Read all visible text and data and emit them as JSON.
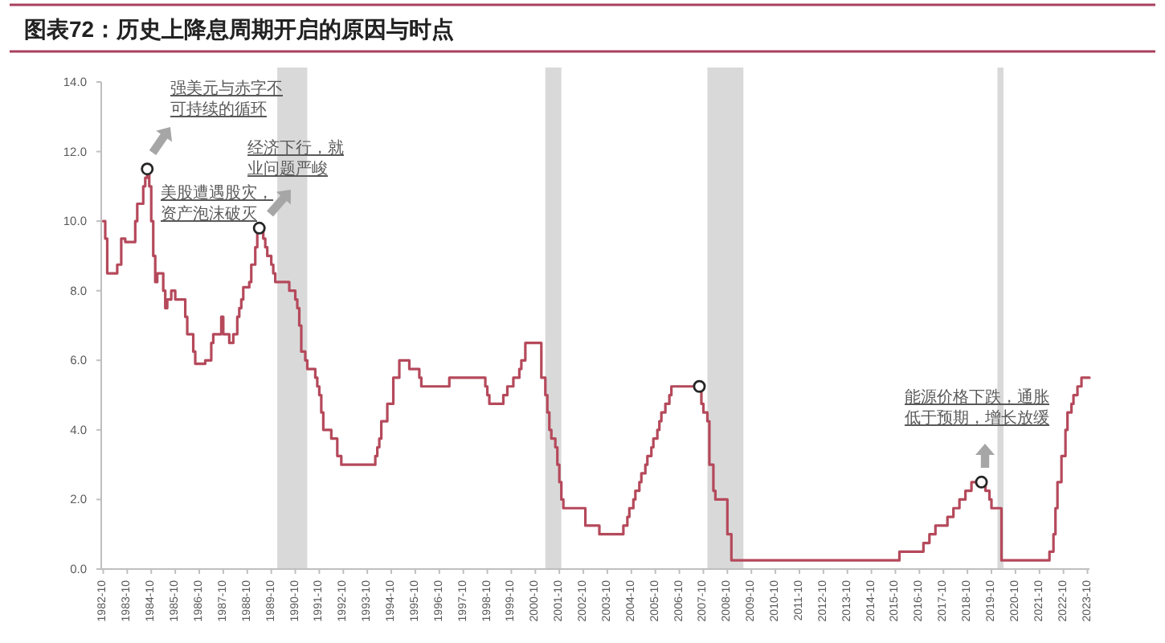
{
  "chart_data": {
    "type": "step",
    "title": "图表72：历史上降息周期开启的原因与时点",
    "xlim": [
      "1982-09",
      "2023-11"
    ],
    "xticks": [
      "1982-10",
      "1983-10",
      "1984-10",
      "1985-10",
      "1986-10",
      "1987-10",
      "1988-10",
      "1989-10",
      "1990-10",
      "1991-10",
      "1992-10",
      "1993-10",
      "1994-10",
      "1995-10",
      "1996-10",
      "1997-10",
      "1998-10",
      "1999-10",
      "2000-10",
      "2001-10",
      "2002-10",
      "2003-10",
      "2004-10",
      "2005-10",
      "2006-10",
      "2007-10",
      "2008-10",
      "2009-10",
      "2010-10",
      "2011-10",
      "2012-10",
      "2013-10",
      "2014-10",
      "2015-10",
      "2016-10",
      "2017-10",
      "2018-10",
      "2019-10",
      "2020-10",
      "2021-10",
      "2022-10",
      "2023-10"
    ],
    "ylim": [
      0,
      14
    ],
    "yticks": [
      {
        "value": 0,
        "label": "0.0"
      },
      {
        "value": 2,
        "label": "2.0"
      },
      {
        "value": 4,
        "label": "4.0"
      },
      {
        "value": 6,
        "label": "6.0"
      },
      {
        "value": 8,
        "label": "8.0"
      },
      {
        "value": 10,
        "label": "10.0"
      },
      {
        "value": 12,
        "label": "12.0"
      },
      {
        "value": 14,
        "label": "14.0"
      }
    ],
    "bands": [
      {
        "axis": "x",
        "from": "1990-01",
        "to": "1991-04",
        "color": "#d9d9d9"
      },
      {
        "axis": "x",
        "from": "2001-03",
        "to": "2001-11",
        "color": "#d9d9d9"
      },
      {
        "axis": "x",
        "from": "2007-12",
        "to": "2009-06",
        "color": "#d9d9d9"
      },
      {
        "axis": "x",
        "from": "2020-01",
        "to": "2020-04",
        "color": "#d9d9d9"
      }
    ],
    "series": [
      {
        "color": "#b5495b",
        "x": [
          "1982-10",
          "1982-11",
          "1982-12",
          "1983-05",
          "1983-07",
          "1983-09",
          "1984-02",
          "1984-03",
          "1984-06",
          "1984-07",
          "1984-08",
          "1984-09",
          "1984-10",
          "1984-11",
          "1984-12",
          "1985-01",
          "1985-04",
          "1985-05",
          "1985-06",
          "1985-08",
          "1985-10",
          "1986-03",
          "1986-04",
          "1986-07",
          "1986-08",
          "1987-01",
          "1987-04",
          "1987-05",
          "1987-09",
          "1987-10",
          "1988-01",
          "1988-03",
          "1988-05",
          "1988-06",
          "1988-07",
          "1988-08",
          "1988-11",
          "1988-12",
          "1989-02",
          "1989-03",
          "1989-04",
          "1989-06",
          "1989-07",
          "1989-08",
          "1989-10",
          "1989-11",
          "1989-12",
          "1990-07",
          "1990-10",
          "1990-11",
          "1990-12",
          "1991-01",
          "1991-03",
          "1991-04",
          "1991-08",
          "1991-09",
          "1991-10",
          "1991-11",
          "1991-12",
          "1992-04",
          "1992-07",
          "1992-09",
          "1994-02",
          "1994-03",
          "1994-04",
          "1994-05",
          "1994-08",
          "1994-11",
          "1995-02",
          "1995-07",
          "1995-12",
          "1996-01",
          "1997-03",
          "1998-09",
          "1998-10",
          "1998-11",
          "1999-06",
          "1999-08",
          "1999-11",
          "2000-02",
          "2000-03",
          "2000-05",
          "2001-01",
          "2001-03",
          "2001-04",
          "2001-05",
          "2001-06",
          "2001-08",
          "2001-09",
          "2001-10",
          "2001-11",
          "2001-12",
          "2002-11",
          "2003-06",
          "2004-06",
          "2004-08",
          "2004-09",
          "2004-11",
          "2004-12",
          "2005-02",
          "2005-03",
          "2005-05",
          "2005-06",
          "2005-08",
          "2005-09",
          "2005-11",
          "2005-12",
          "2006-01",
          "2006-03",
          "2006-05",
          "2006-06",
          "2007-09",
          "2007-10",
          "2007-12",
          "2008-01",
          "2008-03",
          "2008-04",
          "2008-10",
          "2008-12",
          "2015-12",
          "2016-12",
          "2017-03",
          "2017-06",
          "2017-12",
          "2018-03",
          "2018-06",
          "2018-09",
          "2018-12",
          "2019-07",
          "2019-09",
          "2019-10",
          "2020-03",
          "2022-03",
          "2022-05",
          "2022-06",
          "2022-07",
          "2022-09",
          "2022-11",
          "2022-12",
          "2023-02",
          "2023-03",
          "2023-05",
          "2023-07",
          "2023-11"
        ],
        "values": [
          10.0,
          9.5,
          8.5,
          8.75,
          9.5,
          9.4,
          10.0,
          10.5,
          11.0,
          11.25,
          11.5,
          11.0,
          10.0,
          9.0,
          8.25,
          8.5,
          8.0,
          7.5,
          7.75,
          8.0,
          7.75,
          7.25,
          6.75,
          6.25,
          5.9,
          6.0,
          6.5,
          6.75,
          7.25,
          6.75,
          6.5,
          6.75,
          7.25,
          7.5,
          7.75,
          8.1,
          8.25,
          8.75,
          9.25,
          9.75,
          9.8,
          9.5,
          9.25,
          9.0,
          8.75,
          8.5,
          8.25,
          8.0,
          7.75,
          7.5,
          7.0,
          6.25,
          6.0,
          5.75,
          5.5,
          5.25,
          5.0,
          4.5,
          4.0,
          3.75,
          3.25,
          3.0,
          3.25,
          3.5,
          3.75,
          4.25,
          4.75,
          5.5,
          6.0,
          5.75,
          5.5,
          5.25,
          5.5,
          5.25,
          5.0,
          4.75,
          5.0,
          5.25,
          5.5,
          5.75,
          6.0,
          6.5,
          5.5,
          5.0,
          4.5,
          4.0,
          3.75,
          3.5,
          3.0,
          2.5,
          2.0,
          1.75,
          1.25,
          1.0,
          1.25,
          1.5,
          1.75,
          2.0,
          2.25,
          2.5,
          2.75,
          3.0,
          3.25,
          3.5,
          3.75,
          4.0,
          4.25,
          4.5,
          4.75,
          5.0,
          5.25,
          4.75,
          4.5,
          4.25,
          3.0,
          2.25,
          2.0,
          1.0,
          0.25,
          0.5,
          0.75,
          1.0,
          1.25,
          1.5,
          1.75,
          2.0,
          2.25,
          2.5,
          2.25,
          2.0,
          1.75,
          0.25,
          0.5,
          1.0,
          1.75,
          2.5,
          3.25,
          4.0,
          4.5,
          4.75,
          5.0,
          5.25,
          5.5,
          5.5
        ]
      },
      {
        "type": "scatter",
        "marker": "circle",
        "color": "#262626",
        "x": [
          "1984-08",
          "1989-04",
          "2007-08",
          "2019-05"
        ],
        "values": [
          11.5,
          9.8,
          5.25,
          2.5
        ]
      }
    ],
    "annotations": [
      "强美元与赤字不可持续的循环",
      "经济下行，就业问题严峻",
      "美股遭遇股灾，资产泡沫破灭",
      "能源价格下跌，通胀低于预期，增长放缓"
    ]
  }
}
